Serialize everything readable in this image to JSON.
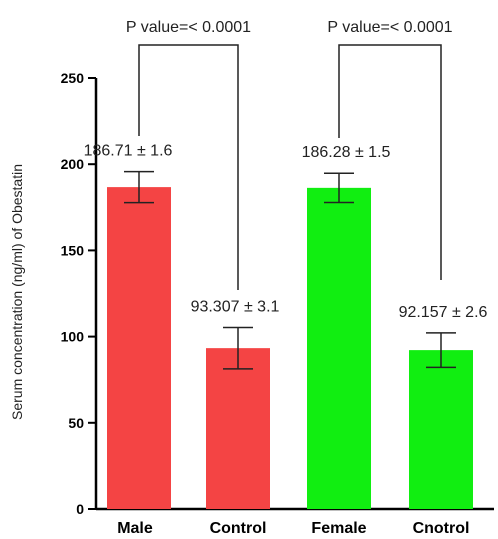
{
  "chart_data": {
    "type": "bar",
    "title": "",
    "xlabel": "",
    "ylabel": "Serum concentration (ng/ml) of Obestatin",
    "ylim": [
      0,
      250
    ],
    "yticks": [
      "0",
      "50",
      "100",
      "150",
      "200",
      "250"
    ],
    "categories": [
      "Male",
      "Control",
      "Female",
      "Cnotrol"
    ],
    "values": [
      186.71,
      93.307,
      186.28,
      92.157
    ],
    "errors": [
      9,
      12,
      8.5,
      10
    ],
    "bar_labels": [
      "186.71 ± 1.6",
      "93.307 ± 3.1",
      "186.28 ± 1.5",
      "92.157 ± 2.6"
    ],
    "bar_colors": [
      "#f44444",
      "#f44444",
      "#11ee11",
      "#11ee11"
    ],
    "comparisons": [
      {
        "label": "P value=< 0.0001",
        "from": "Male",
        "to": "Control"
      },
      {
        "label": "P value=< 0.0001",
        "from": "Female",
        "to": "Cnotrol"
      }
    ]
  }
}
